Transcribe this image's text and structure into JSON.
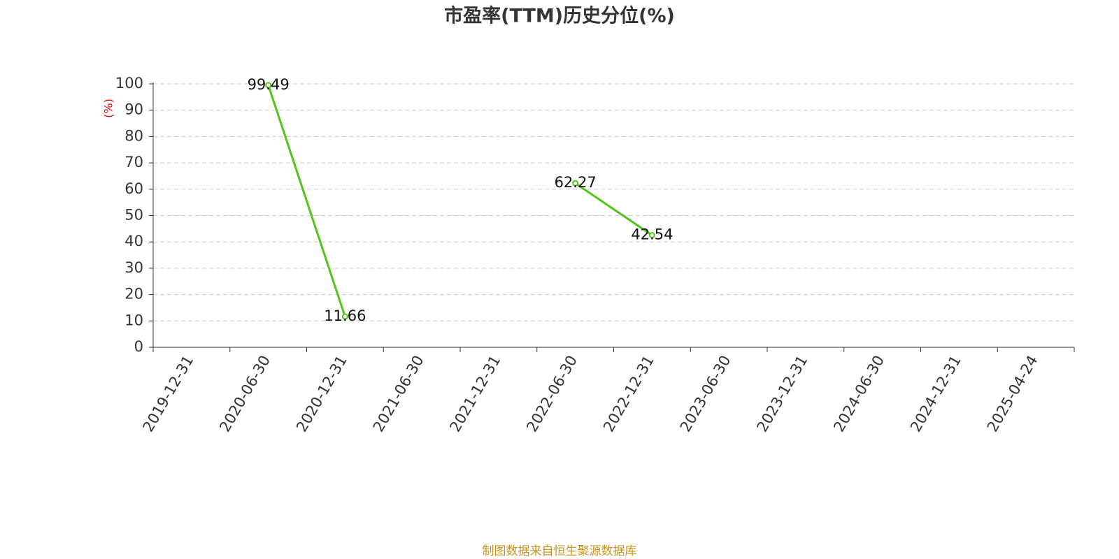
{
  "chart_data": {
    "type": "line",
    "title": "市盈率(TTM)历史分位(%)",
    "y_label": "(%)",
    "source": "制图数据来自恒生聚源数据库",
    "categories": [
      "2019-12-31",
      "2020-06-30",
      "2020-12-31",
      "2021-06-30",
      "2021-12-31",
      "2022-06-30",
      "2022-12-31",
      "2023-06-30",
      "2023-12-31",
      "2024-06-30",
      "2024-12-31",
      "2025-04-24"
    ],
    "values": [
      null,
      99.49,
      11.66,
      null,
      null,
      62.27,
      42.54,
      null,
      null,
      null,
      null,
      null
    ],
    "color": "#52c41a",
    "ylim": [
      0,
      100
    ],
    "yticks": [
      0,
      10,
      20,
      30,
      40,
      50,
      60,
      70,
      80,
      90,
      100
    ],
    "grid": true
  }
}
